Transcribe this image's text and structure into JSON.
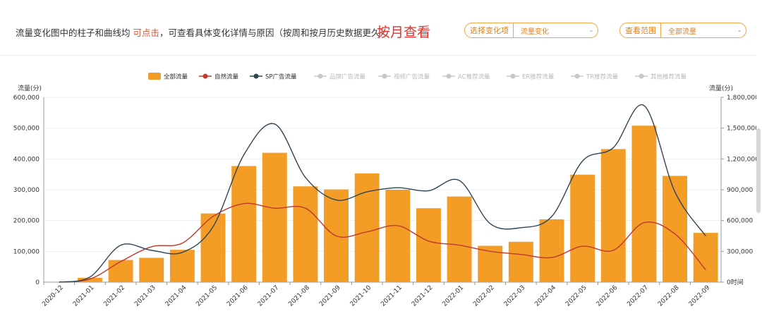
{
  "header": {
    "intro_prefix": "流量变化图中的柱子和曲线均",
    "intro_link": "可点击",
    "intro_suffix": "，可查看具体变化详情与原因（按周和按月历史数据更久）",
    "by_month": "按月查看",
    "select_change": {
      "label": "选择变化项",
      "value": "流量变化"
    },
    "select_range": {
      "label": "查看范围",
      "value": "全部流量"
    }
  },
  "colors": {
    "bar": "#f39c26",
    "natural": "#c0392b",
    "sp": "#2f4554",
    "inactive": "#c8c8c8",
    "accent": "#e5312b"
  },
  "chart_data": {
    "type": "bar",
    "categories": [
      "2020-12",
      "2021-01",
      "2021-02",
      "2021-03",
      "2021-04",
      "2021-05",
      "2021-06",
      "2021-07",
      "2021-08",
      "2021-09",
      "2021-10",
      "2021-11",
      "2021-12",
      "2022-01",
      "2022-02",
      "2022-03",
      "2022-04",
      "2022-05",
      "2022-06",
      "2022-07",
      "2022-08",
      "2022-09"
    ],
    "ylabel_left": "流量(分)",
    "ylabel_right": "流量(分)",
    "y_left_ticks": [
      "0",
      "100,000",
      "200,000",
      "300,000",
      "400,000",
      "500,000",
      "600,000"
    ],
    "y_right_ticks": [
      "0时间",
      "300,000",
      "600,000",
      "900,000",
      "1,200,000",
      "1,500,000",
      "1,800,000"
    ],
    "ylim_left": [
      0,
      600000
    ],
    "ylim_right": [
      0,
      1800000
    ],
    "legend": [
      {
        "name": "全部流量",
        "kind": "bar",
        "active": true
      },
      {
        "name": "自然流量",
        "kind": "line",
        "active": true
      },
      {
        "name": "SP广告流量",
        "kind": "line",
        "active": true
      },
      {
        "name": "品牌广告流量",
        "kind": "line",
        "active": false
      },
      {
        "name": "视频广告流量",
        "kind": "line",
        "active": false
      },
      {
        "name": "AC推荐流量",
        "kind": "line",
        "active": false
      },
      {
        "name": "ER推荐流量",
        "kind": "line",
        "active": false
      },
      {
        "name": "TR推荐流量",
        "kind": "line",
        "active": false
      },
      {
        "name": "其他推荐流量",
        "kind": "line",
        "active": false
      }
    ],
    "series": [
      {
        "name": "全部流量",
        "axis": "left",
        "type": "bar",
        "values": [
          0,
          14000,
          72000,
          79000,
          105000,
          223000,
          377000,
          420000,
          311000,
          301000,
          353000,
          300000,
          240000,
          278000,
          118000,
          131000,
          204000,
          349000,
          432000,
          508000,
          345000,
          160000
        ]
      },
      {
        "name": "自然流量",
        "axis": "right",
        "type": "line",
        "values": [
          0,
          30000,
          200000,
          345000,
          380000,
          640000,
          765000,
          720000,
          720000,
          450000,
          490000,
          550000,
          400000,
          360000,
          300000,
          270000,
          240000,
          350000,
          310000,
          580000,
          470000,
          120000
        ]
      },
      {
        "name": "SP广告流量",
        "axis": "right",
        "type": "line",
        "values": [
          0,
          50000,
          360000,
          310000,
          290000,
          540000,
          1240000,
          1540000,
          1020000,
          800000,
          880000,
          920000,
          890000,
          990000,
          570000,
          530000,
          640000,
          1180000,
          1310000,
          1720000,
          880000,
          450000
        ]
      }
    ]
  }
}
